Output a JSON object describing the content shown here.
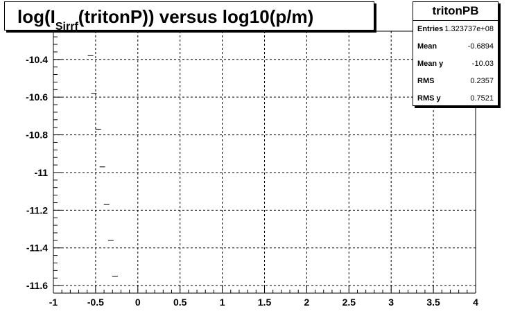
{
  "title": {
    "prefix": "log(I",
    "subscript": "Sirrf",
    "suffix": "(tritonP)) versus log10(p/m)"
  },
  "stats": {
    "name": "tritonPB",
    "rows": [
      {
        "label": "Entries",
        "value": "1.323737e+08"
      },
      {
        "label": "Mean",
        "value": "-0.6894"
      },
      {
        "label": "Mean y",
        "value": "-10.03"
      },
      {
        "label": "RMS",
        "value": "0.2357"
      },
      {
        "label": "RMS y",
        "value": "0.7521"
      }
    ]
  },
  "chart_data": {
    "type": "scatter",
    "title": "log(I_Sirrf(tritonP)) versus log10(p/m)",
    "xlim": [
      -1,
      4
    ],
    "ylim": [
      -11.64,
      -10.25
    ],
    "x_ticks": [
      -1,
      -0.5,
      0,
      0.5,
      1,
      1.5,
      2,
      2.5,
      3,
      3.5,
      4
    ],
    "x_tick_labels": [
      "-1",
      "-0.5",
      "0",
      "0.5",
      "1",
      "1.5",
      "2",
      "2.5",
      "3",
      "3.5",
      "4"
    ],
    "y_ticks": [
      -10.4,
      -10.6,
      -10.8,
      -11,
      -11.2,
      -11.4,
      -11.6
    ],
    "y_tick_labels": [
      "-10.4",
      "-10.6",
      "-10.8",
      "-11",
      "-11.2",
      "-11.4",
      "-11.6"
    ],
    "grid": true,
    "points": [
      {
        "x": -0.56,
        "y": -10.38
      },
      {
        "x": -0.52,
        "y": -10.58
      },
      {
        "x": -0.47,
        "y": -10.77
      },
      {
        "x": -0.42,
        "y": -10.97
      },
      {
        "x": -0.37,
        "y": -11.17
      },
      {
        "x": -0.32,
        "y": -11.36
      },
      {
        "x": -0.27,
        "y": -11.55
      }
    ]
  }
}
